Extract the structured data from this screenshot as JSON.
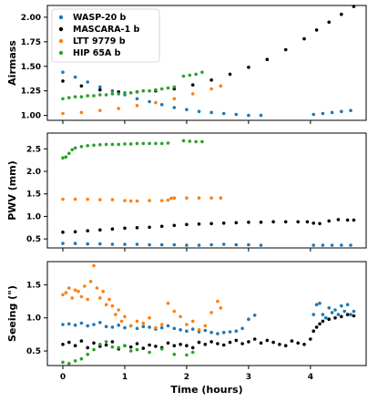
{
  "chart_data": [
    {
      "type": "scatter",
      "ylabel": "Airmass",
      "xlim": [
        -0.25,
        4.9
      ],
      "ylim": [
        0.95,
        2.12
      ],
      "yticks": [
        1.0,
        1.25,
        1.5,
        1.75,
        2.0
      ],
      "ytick_labels": [
        "1.00",
        "1.25",
        "1.50",
        "1.75",
        "2.00"
      ],
      "legend_position": "top-left",
      "series": [
        {
          "name": "WASP-20 b",
          "color": "#1f77b4",
          "x": [
            0,
            0.2,
            0.4,
            0.6,
            0.8,
            1.0,
            1.2,
            1.4,
            1.6,
            1.8,
            2.0,
            2.2,
            2.4,
            2.6,
            2.8,
            3.0,
            3.2,
            4.05,
            4.2,
            4.35,
            4.5,
            4.65
          ],
          "y": [
            1.44,
            1.39,
            1.34,
            1.29,
            1.25,
            1.21,
            1.17,
            1.14,
            1.11,
            1.08,
            1.06,
            1.04,
            1.03,
            1.02,
            1.01,
            1.0,
            1.0,
            1.01,
            1.02,
            1.03,
            1.04,
            1.05
          ]
        },
        {
          "name": "MASCARA-1 b",
          "color": "#000000",
          "x": [
            0,
            0.3,
            0.6,
            0.9,
            1.2,
            1.5,
            1.8,
            2.1,
            2.4,
            2.7,
            3.0,
            3.3,
            3.6,
            3.9,
            4.1,
            4.3,
            4.5,
            4.7
          ],
          "y": [
            1.35,
            1.3,
            1.26,
            1.24,
            1.24,
            1.25,
            1.27,
            1.31,
            1.36,
            1.42,
            1.49,
            1.57,
            1.67,
            1.78,
            1.87,
            1.95,
            2.03,
            2.11
          ]
        },
        {
          "name": "LTT 9779 b",
          "color": "#ff7f0e",
          "x": [
            0,
            0.3,
            0.6,
            0.9,
            1.2,
            1.5,
            1.8,
            2.1,
            2.4,
            2.55
          ],
          "y": [
            1.02,
            1.03,
            1.05,
            1.07,
            1.1,
            1.13,
            1.17,
            1.22,
            1.27,
            1.3
          ]
        },
        {
          "name": "HIP 65A b",
          "color": "#2ca02c",
          "x": [
            0,
            0.1,
            0.2,
            0.3,
            0.4,
            0.5,
            0.6,
            0.7,
            0.8,
            0.9,
            1.0,
            1.1,
            1.2,
            1.3,
            1.4,
            1.5,
            1.6,
            1.7,
            1.8,
            1.95,
            2.05,
            2.15,
            2.25
          ],
          "y": [
            1.17,
            1.18,
            1.19,
            1.19,
            1.2,
            1.2,
            1.21,
            1.21,
            1.22,
            1.22,
            1.23,
            1.23,
            1.24,
            1.25,
            1.25,
            1.26,
            1.27,
            1.28,
            1.29,
            1.4,
            1.41,
            1.42,
            1.44
          ]
        }
      ]
    },
    {
      "type": "scatter",
      "ylabel": "PWV (mm)",
      "xlim": [
        -0.25,
        4.9
      ],
      "ylim": [
        0.3,
        2.85
      ],
      "yticks": [
        0.5,
        1.0,
        1.5,
        2.0,
        2.5
      ],
      "ytick_labels": [
        "0.5",
        "1.0",
        "1.5",
        "2.0",
        "2.5"
      ],
      "series": [
        {
          "name": "WASP-20 b",
          "color": "#1f77b4",
          "x": [
            0,
            0.2,
            0.4,
            0.6,
            0.8,
            1.0,
            1.2,
            1.4,
            1.6,
            1.8,
            2.0,
            2.2,
            2.4,
            2.6,
            2.8,
            3.0,
            3.2,
            4.05,
            4.2,
            4.35,
            4.5,
            4.65
          ],
          "y": [
            0.4,
            0.4,
            0.39,
            0.39,
            0.38,
            0.38,
            0.38,
            0.37,
            0.37,
            0.37,
            0.36,
            0.36,
            0.37,
            0.38,
            0.37,
            0.37,
            0.36,
            0.36,
            0.36,
            0.36,
            0.36,
            0.36
          ]
        },
        {
          "name": "MASCARA-1 b",
          "color": "#000000",
          "x": [
            0,
            0.2,
            0.4,
            0.6,
            0.8,
            1.0,
            1.2,
            1.4,
            1.6,
            1.8,
            2.0,
            2.2,
            2.4,
            2.6,
            2.8,
            3.0,
            3.2,
            3.4,
            3.6,
            3.8,
            3.95,
            4.05,
            4.15,
            4.3,
            4.45,
            4.6,
            4.7
          ],
          "y": [
            0.65,
            0.66,
            0.68,
            0.7,
            0.72,
            0.74,
            0.75,
            0.76,
            0.78,
            0.8,
            0.82,
            0.83,
            0.84,
            0.85,
            0.86,
            0.87,
            0.87,
            0.88,
            0.88,
            0.88,
            0.88,
            0.85,
            0.84,
            0.9,
            0.93,
            0.92,
            0.92
          ]
        },
        {
          "name": "LTT 9779 b",
          "color": "#ff7f0e",
          "x": [
            0,
            0.2,
            0.4,
            0.6,
            0.8,
            1.0,
            1.1,
            1.2,
            1.4,
            1.6,
            1.7,
            1.75,
            1.8,
            2.0,
            2.2,
            2.4,
            2.55
          ],
          "y": [
            1.38,
            1.38,
            1.38,
            1.37,
            1.37,
            1.35,
            1.34,
            1.34,
            1.35,
            1.35,
            1.36,
            1.4,
            1.41,
            1.41,
            1.41,
            1.41,
            1.41
          ]
        },
        {
          "name": "HIP 65A b",
          "color": "#2ca02c",
          "x": [
            0,
            0.05,
            0.1,
            0.15,
            0.2,
            0.3,
            0.4,
            0.5,
            0.6,
            0.7,
            0.8,
            0.9,
            1.0,
            1.1,
            1.2,
            1.3,
            1.4,
            1.5,
            1.6,
            1.7,
            1.95,
            2.05,
            2.15,
            2.25
          ],
          "y": [
            2.3,
            2.32,
            2.4,
            2.48,
            2.52,
            2.55,
            2.57,
            2.58,
            2.59,
            2.6,
            2.6,
            2.6,
            2.61,
            2.61,
            2.62,
            2.62,
            2.62,
            2.62,
            2.62,
            2.63,
            2.68,
            2.67,
            2.66,
            2.66
          ]
        }
      ]
    },
    {
      "type": "scatter",
      "ylabel": "Seeing (\")",
      "xlabel": "Time (hours)",
      "xlim": [
        -0.25,
        4.9
      ],
      "ylim": [
        0.28,
        1.85
      ],
      "xticks": [
        0,
        1,
        2,
        3,
        4
      ],
      "xtick_labels": [
        "0",
        "1",
        "2",
        "3",
        "4"
      ],
      "yticks": [
        0.5,
        1.0,
        1.5
      ],
      "ytick_labels": [
        "0.5",
        "1.0",
        "1.5"
      ],
      "series": [
        {
          "name": "WASP-20 b",
          "color": "#1f77b4",
          "x": [
            0,
            0.1,
            0.2,
            0.3,
            0.4,
            0.5,
            0.6,
            0.7,
            0.8,
            0.9,
            1.0,
            1.1,
            1.2,
            1.3,
            1.4,
            1.5,
            1.6,
            1.7,
            1.8,
            1.9,
            2.0,
            2.1,
            2.2,
            2.3,
            2.4,
            2.5,
            2.6,
            2.7,
            2.8,
            2.9,
            3.0,
            3.1,
            4.05,
            4.1,
            4.15,
            4.2,
            4.25,
            4.3,
            4.35,
            4.4,
            4.45,
            4.5,
            4.55,
            4.6,
            4.65,
            4.7
          ],
          "y": [
            0.9,
            0.91,
            0.89,
            0.92,
            0.88,
            0.9,
            0.93,
            0.87,
            0.86,
            0.89,
            0.85,
            0.88,
            0.84,
            0.87,
            0.86,
            0.83,
            0.85,
            0.88,
            0.84,
            0.82,
            0.8,
            0.83,
            0.79,
            0.81,
            0.78,
            0.76,
            0.78,
            0.79,
            0.8,
            0.84,
            0.98,
            1.04,
            1.05,
            1.2,
            1.22,
            1.05,
            1.0,
            1.15,
            1.08,
            1.12,
            1.05,
            1.18,
            1.1,
            1.2,
            1.05,
            1.1
          ]
        },
        {
          "name": "MASCARA-1 b",
          "color": "#000000",
          "x": [
            0,
            0.1,
            0.2,
            0.3,
            0.4,
            0.5,
            0.6,
            0.7,
            0.8,
            0.9,
            1.0,
            1.1,
            1.2,
            1.3,
            1.4,
            1.5,
            1.6,
            1.7,
            1.8,
            1.9,
            2.0,
            2.1,
            2.2,
            2.3,
            2.4,
            2.5,
            2.6,
            2.7,
            2.8,
            2.9,
            3.0,
            3.1,
            3.2,
            3.3,
            3.4,
            3.5,
            3.6,
            3.7,
            3.8,
            3.9,
            4.0,
            4.05,
            4.1,
            4.15,
            4.2,
            4.3,
            4.4,
            4.5,
            4.6,
            4.7
          ],
          "y": [
            0.6,
            0.63,
            0.58,
            0.65,
            0.55,
            0.62,
            0.57,
            0.59,
            0.64,
            0.53,
            0.58,
            0.56,
            0.61,
            0.54,
            0.59,
            0.57,
            0.55,
            0.62,
            0.58,
            0.6,
            0.58,
            0.55,
            0.63,
            0.6,
            0.64,
            0.61,
            0.59,
            0.63,
            0.66,
            0.61,
            0.64,
            0.68,
            0.62,
            0.66,
            0.63,
            0.6,
            0.58,
            0.65,
            0.62,
            0.6,
            0.68,
            0.8,
            0.86,
            0.91,
            0.95,
            0.98,
            1.0,
            1.02,
            1.05,
            1.03
          ]
        },
        {
          "name": "LTT 9779 b",
          "color": "#ff7f0e",
          "x": [
            0,
            0.05,
            0.1,
            0.15,
            0.2,
            0.25,
            0.3,
            0.35,
            0.4,
            0.45,
            0.5,
            0.55,
            0.6,
            0.65,
            0.7,
            0.75,
            0.8,
            0.85,
            0.9,
            0.95,
            1.0,
            1.1,
            1.2,
            1.3,
            1.4,
            1.5,
            1.6,
            1.7,
            1.8,
            1.9,
            2.0,
            2.1,
            2.2,
            2.3,
            2.4,
            2.5,
            2.55
          ],
          "y": [
            1.35,
            1.38,
            1.45,
            1.3,
            1.42,
            1.4,
            1.32,
            1.48,
            1.28,
            1.55,
            1.79,
            1.45,
            1.3,
            1.4,
            1.2,
            1.28,
            1.18,
            1.05,
            1.12,
            0.95,
            1.02,
            0.88,
            0.95,
            0.92,
            1.0,
            0.85,
            0.9,
            1.22,
            1.1,
            1.02,
            0.9,
            0.95,
            0.82,
            0.88,
            1.08,
            1.25,
            1.15
          ]
        },
        {
          "name": "HIP 65A b",
          "color": "#2ca02c",
          "x": [
            0,
            0.1,
            0.2,
            0.3,
            0.4,
            0.5,
            0.6,
            0.7,
            0.8,
            0.9,
            1.0,
            1.1,
            1.2,
            1.4,
            1.6,
            1.8,
            2.0,
            2.1
          ],
          "y": [
            0.33,
            0.31,
            0.35,
            0.38,
            0.45,
            0.52,
            0.6,
            0.64,
            0.56,
            0.55,
            0.58,
            0.5,
            0.52,
            0.48,
            0.53,
            0.45,
            0.44,
            0.48
          ]
        }
      ]
    }
  ]
}
